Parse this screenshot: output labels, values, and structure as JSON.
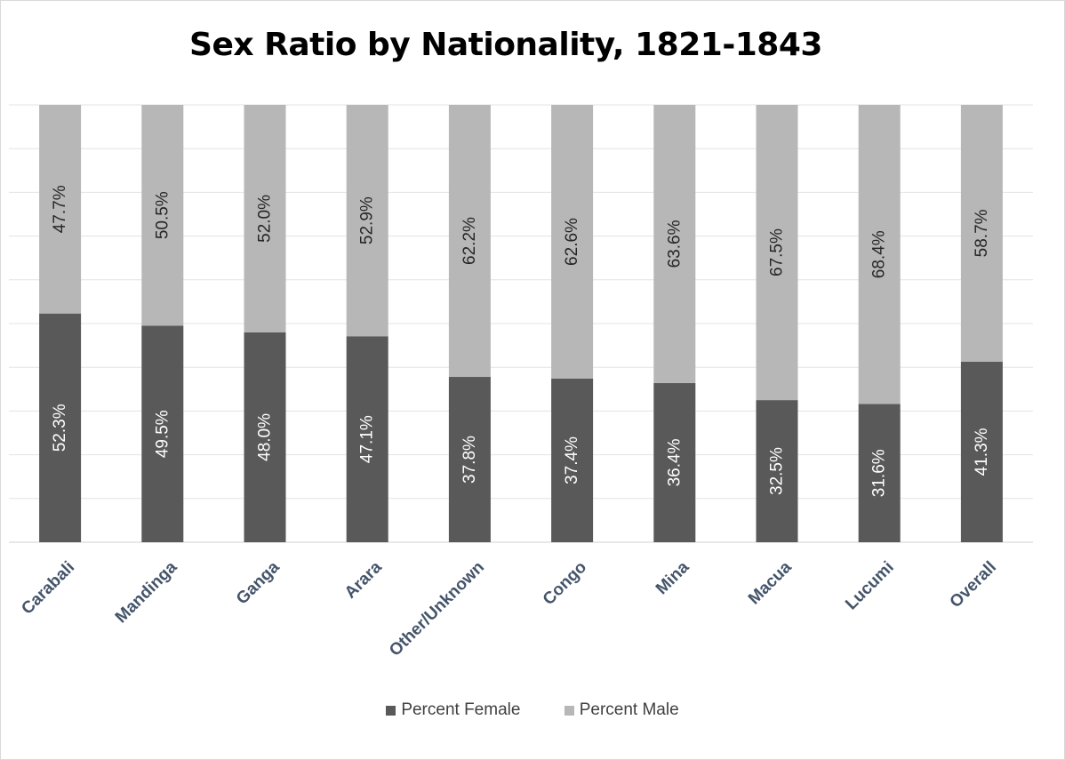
{
  "chart_data": {
    "type": "bar",
    "stacked": true,
    "percent_stacked": true,
    "title": "Sex Ratio by Nationality, 1821-1843",
    "xlabel": "",
    "ylabel": "",
    "ylim": [
      0,
      100
    ],
    "grid": true,
    "legend_position": "bottom",
    "categories": [
      "Carabali",
      "Mandinga",
      "Ganga",
      "Arara",
      "Other/Unknown",
      "Congo",
      "Mina",
      "Macua",
      "Lucumi",
      "Overall"
    ],
    "series": [
      {
        "name": "Percent Female",
        "color": "#595959",
        "values": [
          52.3,
          49.5,
          48.0,
          47.1,
          37.8,
          37.4,
          36.4,
          32.5,
          31.6,
          41.3
        ],
        "labels": [
          "52.3%",
          "49.5%",
          "48.0%",
          "47.1%",
          "37.8%",
          "37.4%",
          "36.4%",
          "32.5%",
          "31.6%",
          "41.3%"
        ]
      },
      {
        "name": "Percent Male",
        "color": "#b7b7b7",
        "values": [
          47.7,
          50.5,
          52.0,
          52.9,
          62.2,
          62.6,
          63.6,
          67.5,
          68.4,
          58.7
        ],
        "labels": [
          "47.7%",
          "50.5%",
          "52.0%",
          "52.9%",
          "62.2%",
          "62.6%",
          "63.6%",
          "67.5%",
          "68.4%",
          "58.7%"
        ]
      }
    ]
  }
}
